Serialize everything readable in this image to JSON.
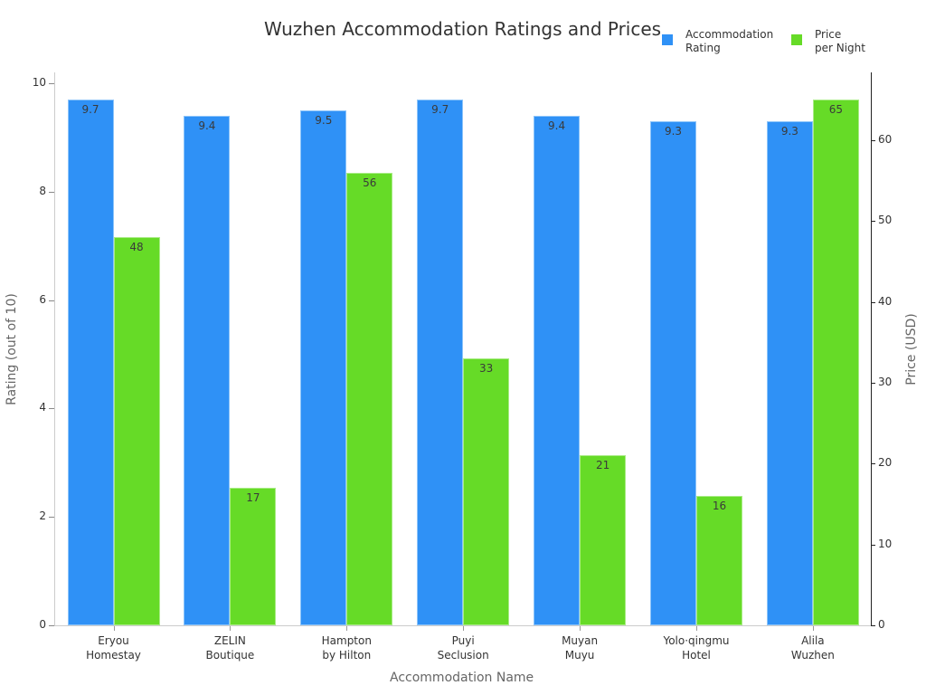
{
  "chart_data": {
    "type": "bar",
    "title": "Wuzhen Accommodation Ratings and Prices",
    "xlabel": "Accommodation Name",
    "ylabel": "Rating (out of 10)",
    "y2label": "Price (USD)",
    "categories": [
      "Eryou\nHomestay",
      "ZELIN\nBoutique",
      "Hampton\nby Hilton",
      "Puyi\nSeclusion",
      "Muyan\nMuyu",
      "Yolo·qingmu\nHotel",
      "Alila\nWuzhen"
    ],
    "series": [
      {
        "name": "Accommodation Rating",
        "axis": "left",
        "color": "#2f91f6",
        "values": [
          9.7,
          9.4,
          9.5,
          9.7,
          9.4,
          9.3,
          9.3
        ],
        "labels": [
          "9.7",
          "9.4",
          "9.5",
          "9.7",
          "9.4",
          "9.3",
          "9.3"
        ]
      },
      {
        "name": "Price per Night",
        "axis": "right",
        "color": "#66db27",
        "values": [
          48,
          17,
          56,
          33,
          21,
          16,
          65
        ],
        "labels": [
          "48",
          "17",
          "56",
          "33",
          "21",
          "16",
          "65"
        ]
      }
    ],
    "ylim": [
      0,
      10.2
    ],
    "y2lim": [
      0,
      68.4
    ],
    "yticks": [
      "0",
      "2",
      "4",
      "6",
      "8",
      "10"
    ],
    "y2ticks": [
      "0",
      "10",
      "20",
      "30",
      "40",
      "50",
      "60"
    ],
    "grid": false,
    "legend_position": "top-right"
  },
  "legend": {
    "items": [
      {
        "label": "Accommodation\nRating",
        "color": "#2f91f6"
      },
      {
        "label": "Price\nper Night",
        "color": "#66db27"
      }
    ]
  }
}
